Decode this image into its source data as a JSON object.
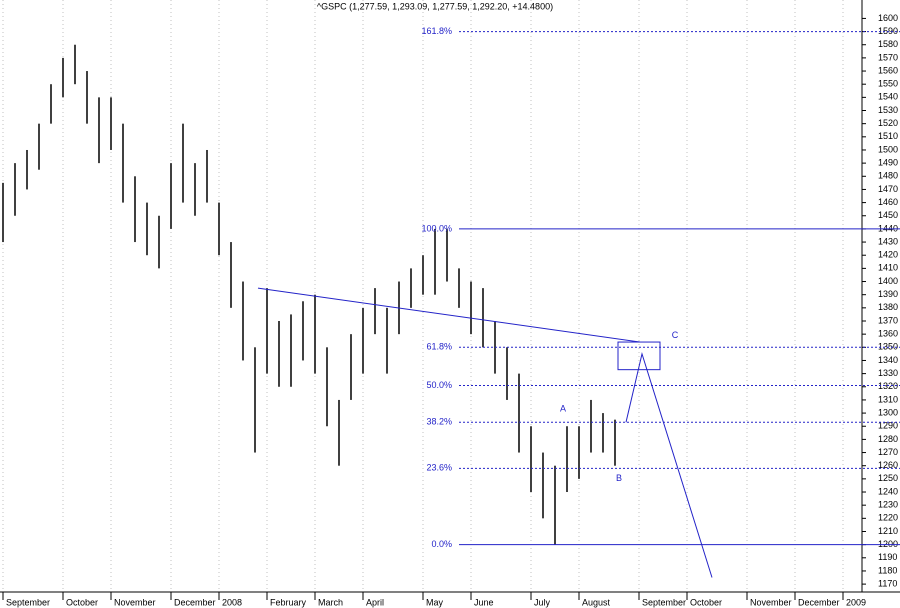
{
  "chart_data": {
    "type": "ohlc",
    "title": "^GSPC (1,277.59, 1,293.09, 1,277.59, 1,292.20, +14.4800)",
    "categories": [
      "September",
      null,
      null,
      null,
      null,
      "October",
      null,
      null,
      null,
      "November",
      null,
      null,
      null,
      null,
      "December",
      null,
      null,
      null,
      "2008",
      null,
      null,
      null,
      "February",
      null,
      null,
      null,
      "March",
      null,
      null,
      null,
      "April",
      null,
      null,
      null,
      null,
      "May",
      null,
      null,
      null,
      "June",
      null,
      null,
      null,
      null,
      "July",
      null,
      null,
      null,
      "August",
      null,
      null,
      null,
      null,
      "September",
      null,
      null,
      null,
      "October",
      null,
      null,
      null,
      null,
      "November",
      null,
      null,
      null,
      "December",
      null,
      null,
      null,
      "2009",
      null
    ],
    "high": [
      1475,
      1490,
      1500,
      1520,
      1550,
      1570,
      1580,
      1560,
      1540,
      1540,
      1520,
      1480,
      1460,
      1450,
      1490,
      1520,
      1490,
      1500,
      1460,
      1430,
      1400,
      1350,
      1395,
      1370,
      1375,
      1385,
      1390,
      1350,
      1310,
      1360,
      1380,
      1395,
      1380,
      1400,
      1410,
      1420,
      1440,
      1440,
      1410,
      1400,
      1395,
      1370,
      1350,
      1330,
      1290,
      1270,
      1260,
      1290,
      1290,
      1310,
      1300,
      1295,
      null,
      null,
      null,
      null,
      null,
      null,
      null,
      null,
      null,
      null,
      null,
      null,
      null,
      null,
      null,
      null,
      null,
      null,
      null,
      null
    ],
    "low": [
      1430,
      1450,
      1470,
      1485,
      1520,
      1540,
      1550,
      1520,
      1490,
      1500,
      1460,
      1430,
      1420,
      1410,
      1440,
      1460,
      1450,
      1460,
      1420,
      1380,
      1340,
      1270,
      1330,
      1320,
      1320,
      1340,
      1330,
      1290,
      1260,
      1310,
      1330,
      1360,
      1330,
      1360,
      1380,
      1390,
      1390,
      1400,
      1380,
      1360,
      1350,
      1330,
      1310,
      1270,
      1240,
      1220,
      1200,
      1240,
      1250,
      1270,
      1270,
      1260,
      null,
      null,
      null,
      null,
      null,
      null,
      null,
      null,
      null,
      null,
      null,
      null,
      null,
      null,
      null,
      null,
      null,
      null,
      null,
      null
    ],
    "color": "#000000",
    "annotation_color": "#2323c8",
    "ylim": [
      1164,
      1614
    ],
    "yticks": [
      1170,
      1180,
      1190,
      1200,
      1210,
      1220,
      1230,
      1240,
      1250,
      1260,
      1270,
      1280,
      1290,
      1300,
      1310,
      1320,
      1330,
      1340,
      1350,
      1360,
      1370,
      1380,
      1390,
      1400,
      1410,
      1420,
      1430,
      1440,
      1450,
      1460,
      1470,
      1480,
      1490,
      1500,
      1510,
      1520,
      1530,
      1540,
      1550,
      1560,
      1570,
      1580,
      1590,
      1600
    ],
    "fib_levels": [
      {
        "value": 1590,
        "label": "161.8%"
      },
      {
        "value": 1440,
        "label": "100.0%"
      },
      {
        "value": 1350,
        "label": "61.8%"
      },
      {
        "value": 1321,
        "label": "50.0%"
      },
      {
        "value": 1293,
        "label": "38.2%"
      },
      {
        "value": 1258,
        "label": "23.6%"
      },
      {
        "value": 1200,
        "label": "0.0%"
      }
    ],
    "trendline": [
      1395,
      1354
    ],
    "forecast": [
      1293,
      1345,
      1175
    ],
    "target_box": [
      1333,
      1354
    ],
    "wave_labels": [
      {
        "value": 1303,
        "label": "A"
      },
      {
        "value": 1250,
        "label": "B"
      },
      {
        "value": 1359,
        "label": "C"
      }
    ]
  }
}
